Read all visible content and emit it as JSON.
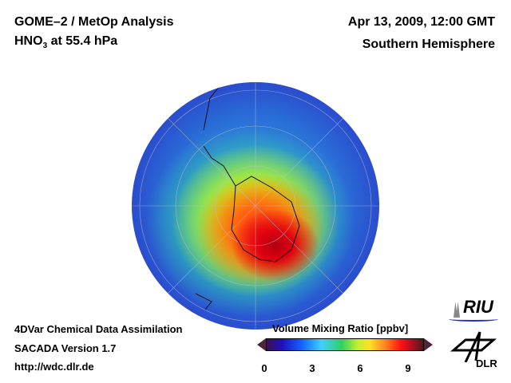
{
  "header": {
    "title": "GOME–2 / MetOp Analysis",
    "species": "HNO",
    "species_sub": "3",
    "level": " at 55.4 hPa",
    "date": "Apr 13, 2009, 12:00 GMT",
    "region": "Southern Hemisphere"
  },
  "footer": {
    "line1": "4DVar Chemical Data Assimilation",
    "line2": "SACADA Version 1.7",
    "line3": "http://wdc.dlr.de"
  },
  "colorbar": {
    "title": "Volume Mixing Ratio [ppbv]",
    "ticks": [
      "0",
      "3",
      "6",
      "9"
    ],
    "range": [
      0,
      10
    ]
  },
  "logos": {
    "riu": "RIU",
    "dlr": "DLR"
  }
}
